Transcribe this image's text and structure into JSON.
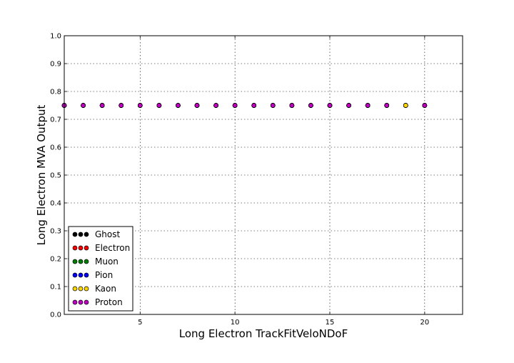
{
  "chart_data": {
    "type": "scatter",
    "xlabel": "Long Electron TrackFitVeloNDoF",
    "ylabel": "Long Electron MVA Output",
    "xlim": [
      1,
      22
    ],
    "ylim": [
      0.0,
      1.0
    ],
    "xticks": [
      5,
      10,
      15,
      20
    ],
    "xtick_labels": [
      "5",
      "10",
      "15",
      "20"
    ],
    "yticks": [
      0.0,
      0.1,
      0.2,
      0.3,
      0.4,
      0.5,
      0.6,
      0.7,
      0.8,
      0.9,
      1.0
    ],
    "ytick_labels": [
      "0.0",
      "0.1",
      "0.2",
      "0.3",
      "0.4",
      "0.5",
      "0.6",
      "0.7",
      "0.8",
      "0.9",
      "1.0"
    ],
    "grid": true,
    "legend_position": "bottom-left",
    "series": [
      {
        "name": "Ghost",
        "color": "#000000",
        "x": [
          1,
          2,
          3,
          4,
          5,
          6,
          7,
          8,
          9,
          10,
          11,
          12,
          13,
          14,
          15,
          16,
          17,
          18,
          19,
          20
        ],
        "y": [
          0.75,
          0.75,
          0.75,
          0.75,
          0.75,
          0.75,
          0.75,
          0.75,
          0.75,
          0.75,
          0.75,
          0.75,
          0.75,
          0.75,
          0.75,
          0.75,
          0.75,
          0.75,
          0.75,
          0.75
        ]
      },
      {
        "name": "Electron",
        "color": "#ff0000",
        "x": [
          1,
          2,
          3,
          4,
          5,
          6,
          7,
          8,
          9,
          10,
          11,
          12,
          13,
          14,
          15,
          16,
          17,
          18,
          19,
          20
        ],
        "y": [
          0.75,
          0.75,
          0.75,
          0.75,
          0.75,
          0.75,
          0.75,
          0.75,
          0.75,
          0.75,
          0.75,
          0.75,
          0.75,
          0.75,
          0.75,
          0.75,
          0.75,
          0.75,
          0.75,
          0.75
        ]
      },
      {
        "name": "Muon",
        "color": "#008000",
        "x": [
          1,
          2,
          3,
          4,
          5,
          6,
          7,
          8,
          9,
          10,
          11,
          12,
          13,
          14,
          15,
          16,
          17,
          18,
          19,
          20
        ],
        "y": [
          0.75,
          0.75,
          0.75,
          0.75,
          0.75,
          0.75,
          0.75,
          0.75,
          0.75,
          0.75,
          0.75,
          0.75,
          0.75,
          0.75,
          0.75,
          0.75,
          0.75,
          0.75,
          0.75,
          0.75
        ]
      },
      {
        "name": "Pion",
        "color": "#0000ff",
        "x": [
          1,
          2,
          3,
          4,
          5,
          6,
          7,
          8,
          9,
          10,
          11,
          12,
          13,
          14,
          15,
          16,
          17,
          18,
          19,
          20
        ],
        "y": [
          0.75,
          0.75,
          0.75,
          0.75,
          0.75,
          0.75,
          0.75,
          0.75,
          0.75,
          0.75,
          0.75,
          0.75,
          0.75,
          0.75,
          0.75,
          0.75,
          0.75,
          0.75,
          0.75,
          0.75
        ]
      },
      {
        "name": "Kaon",
        "color": "#ffd700",
        "x": [
          1,
          2,
          3,
          4,
          5,
          6,
          7,
          8,
          9,
          10,
          11,
          12,
          13,
          14,
          15,
          16,
          17,
          18,
          19,
          20
        ],
        "y": [
          0.75,
          0.75,
          0.75,
          0.75,
          0.75,
          0.75,
          0.75,
          0.75,
          0.75,
          0.75,
          0.75,
          0.75,
          0.75,
          0.75,
          0.75,
          0.75,
          0.75,
          0.75,
          0.75,
          0.75
        ]
      },
      {
        "name": "Proton",
        "color": "#c000c0",
        "x": [
          1,
          2,
          3,
          4,
          5,
          6,
          7,
          8,
          9,
          10,
          11,
          12,
          13,
          14,
          15,
          16,
          17,
          18,
          20
        ],
        "y": [
          0.75,
          0.75,
          0.75,
          0.75,
          0.75,
          0.75,
          0.75,
          0.75,
          0.75,
          0.75,
          0.75,
          0.75,
          0.75,
          0.75,
          0.75,
          0.75,
          0.75,
          0.75,
          0.75
        ]
      }
    ]
  }
}
